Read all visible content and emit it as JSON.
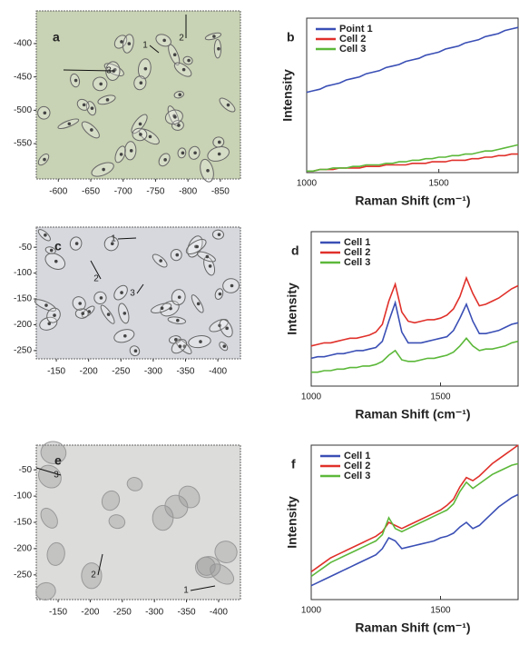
{
  "chart_data": [
    {
      "type": "image",
      "panel_label": "a",
      "annotations": [
        "1",
        "2",
        "3"
      ],
      "xlim": [
        -566,
        -881
      ],
      "xticks": [
        -600,
        -650,
        -700,
        -750,
        -800,
        -850
      ],
      "ylim": [
        -351,
        -603
      ],
      "yticks": [
        -400,
        -450,
        -500,
        -550
      ],
      "color": "#c8d2b4"
    },
    {
      "type": "line",
      "panel_label": "b",
      "x_label": "Raman Shift (cm⁻¹)",
      "y_label": "Intensity",
      "legend": "upper left",
      "x": [
        1000,
        1025,
        1050,
        1075,
        1100,
        1125,
        1150,
        1175,
        1200,
        1225,
        1250,
        1275,
        1300,
        1325,
        1350,
        1375,
        1400,
        1425,
        1450,
        1475,
        1500,
        1525,
        1550,
        1575,
        1600,
        1625,
        1650,
        1675,
        1700,
        1725,
        1750,
        1775,
        1800
      ],
      "xlim": [
        1000,
        1800
      ],
      "xticks": [
        1000,
        1500
      ],
      "ylim": [
        0,
        100
      ],
      "series": [
        {
          "name": "Point 1",
          "color": "#3a4fb5",
          "values": [
            52,
            53,
            54,
            56,
            57,
            58,
            60,
            61,
            62,
            64,
            65,
            66,
            68,
            69,
            70,
            72,
            73,
            74,
            76,
            77,
            78,
            80,
            81,
            82,
            84,
            85,
            86,
            88,
            89,
            90,
            92,
            93,
            94
          ]
        },
        {
          "name": "Cell 2",
          "color": "#e0302a",
          "values": [
            1,
            1,
            2,
            2,
            2,
            3,
            3,
            3,
            3,
            4,
            4,
            4,
            5,
            5,
            5,
            5,
            6,
            6,
            6,
            7,
            7,
            7,
            8,
            8,
            8,
            9,
            9,
            10,
            10,
            11,
            11,
            12,
            12
          ]
        },
        {
          "name": "Cell 3",
          "color": "#5cb83a",
          "values": [
            1,
            1,
            2,
            2,
            3,
            3,
            3,
            4,
            4,
            5,
            5,
            5,
            6,
            6,
            7,
            7,
            8,
            8,
            9,
            9,
            10,
            10,
            11,
            11,
            12,
            12,
            13,
            14,
            14,
            15,
            16,
            17,
            18
          ]
        }
      ]
    },
    {
      "type": "image",
      "panel_label": "c",
      "annotations": [
        "1",
        "2",
        "3"
      ],
      "xlim": [
        -119,
        -435
      ],
      "xticks": [
        -150,
        -200,
        -250,
        -300,
        -350,
        -400
      ],
      "ylim": [
        -11,
        -266
      ],
      "yticks": [
        -50,
        -100,
        -150,
        -200,
        -250
      ],
      "color": "#d6d8de"
    },
    {
      "type": "line",
      "panel_label": "d",
      "x_label": "Raman Shift (cm⁻¹)",
      "y_label": "Intensity",
      "legend": "upper left",
      "x": [
        1000,
        1025,
        1050,
        1075,
        1100,
        1125,
        1150,
        1175,
        1200,
        1225,
        1250,
        1275,
        1300,
        1325,
        1350,
        1375,
        1400,
        1425,
        1450,
        1475,
        1500,
        1525,
        1550,
        1575,
        1600,
        1625,
        1650,
        1675,
        1700,
        1725,
        1750,
        1775,
        1800
      ],
      "xlim": [
        1000,
        1800
      ],
      "xticks": [
        1000,
        1500
      ],
      "ylim": [
        0,
        100
      ],
      "series": [
        {
          "name": "Cell 1",
          "color": "#3a4fb5",
          "values": [
            18,
            19,
            19,
            20,
            21,
            21,
            22,
            23,
            23,
            24,
            25,
            29,
            42,
            54,
            35,
            28,
            28,
            28,
            29,
            30,
            31,
            32,
            36,
            44,
            53,
            42,
            34,
            34,
            35,
            36,
            38,
            40,
            41
          ]
        },
        {
          "name": "Cell 2",
          "color": "#e0302a",
          "values": [
            26,
            27,
            28,
            28,
            29,
            30,
            31,
            31,
            32,
            33,
            35,
            40,
            55,
            66,
            48,
            42,
            41,
            42,
            43,
            43,
            44,
            46,
            50,
            58,
            70,
            60,
            52,
            53,
            55,
            57,
            60,
            63,
            65
          ]
        },
        {
          "name": "Cell 3",
          "color": "#5cb83a",
          "values": [
            9,
            9,
            10,
            10,
            11,
            11,
            12,
            12,
            13,
            13,
            14,
            16,
            20,
            23,
            17,
            16,
            16,
            17,
            18,
            18,
            19,
            20,
            22,
            26,
            31,
            26,
            23,
            24,
            24,
            25,
            26,
            28,
            29
          ]
        }
      ]
    },
    {
      "type": "image",
      "panel_label": "e",
      "annotations": [
        "1",
        "2",
        "3"
      ],
      "xlim": [
        -116,
        -434
      ],
      "xticks": [
        -150,
        -200,
        -250,
        -300,
        -350,
        -400
      ],
      "ylim": [
        -3,
        -297
      ],
      "yticks": [
        -50,
        -100,
        -150,
        -200,
        -250
      ],
      "color": "#dcdcdb"
    },
    {
      "type": "line",
      "panel_label": "f",
      "x_label": "Raman Shift (cm⁻¹)",
      "y_label": "Intensity",
      "legend": "upper left",
      "x": [
        1000,
        1025,
        1050,
        1075,
        1100,
        1125,
        1150,
        1175,
        1200,
        1225,
        1250,
        1275,
        1300,
        1325,
        1350,
        1375,
        1400,
        1425,
        1450,
        1475,
        1500,
        1525,
        1550,
        1575,
        1600,
        1625,
        1650,
        1675,
        1700,
        1725,
        1750,
        1775,
        1800
      ],
      "xlim": [
        1000,
        1800
      ],
      "xticks": [
        1000,
        1500
      ],
      "ylim": [
        0,
        100
      ],
      "series": [
        {
          "name": "Cell 1",
          "color": "#3a4fb5",
          "values": [
            9,
            11,
            13,
            15,
            17,
            19,
            21,
            23,
            25,
            27,
            29,
            33,
            40,
            38,
            33,
            34,
            35,
            36,
            37,
            38,
            40,
            41,
            43,
            47,
            50,
            46,
            48,
            52,
            56,
            60,
            63,
            66,
            68
          ]
        },
        {
          "name": "Cell 2",
          "color": "#e0302a",
          "values": [
            18,
            21,
            24,
            27,
            29,
            31,
            33,
            35,
            37,
            39,
            41,
            44,
            50,
            48,
            46,
            48,
            50,
            52,
            54,
            56,
            58,
            61,
            65,
            73,
            79,
            77,
            80,
            84,
            88,
            91,
            94,
            97,
            100
          ]
        },
        {
          "name": "Cell 3",
          "color": "#5cb83a",
          "values": [
            15,
            18,
            21,
            24,
            26,
            28,
            30,
            32,
            34,
            36,
            38,
            42,
            53,
            46,
            44,
            46,
            48,
            50,
            52,
            54,
            56,
            58,
            62,
            70,
            76,
            72,
            75,
            78,
            81,
            83,
            85,
            87,
            88
          ]
        }
      ]
    }
  ]
}
